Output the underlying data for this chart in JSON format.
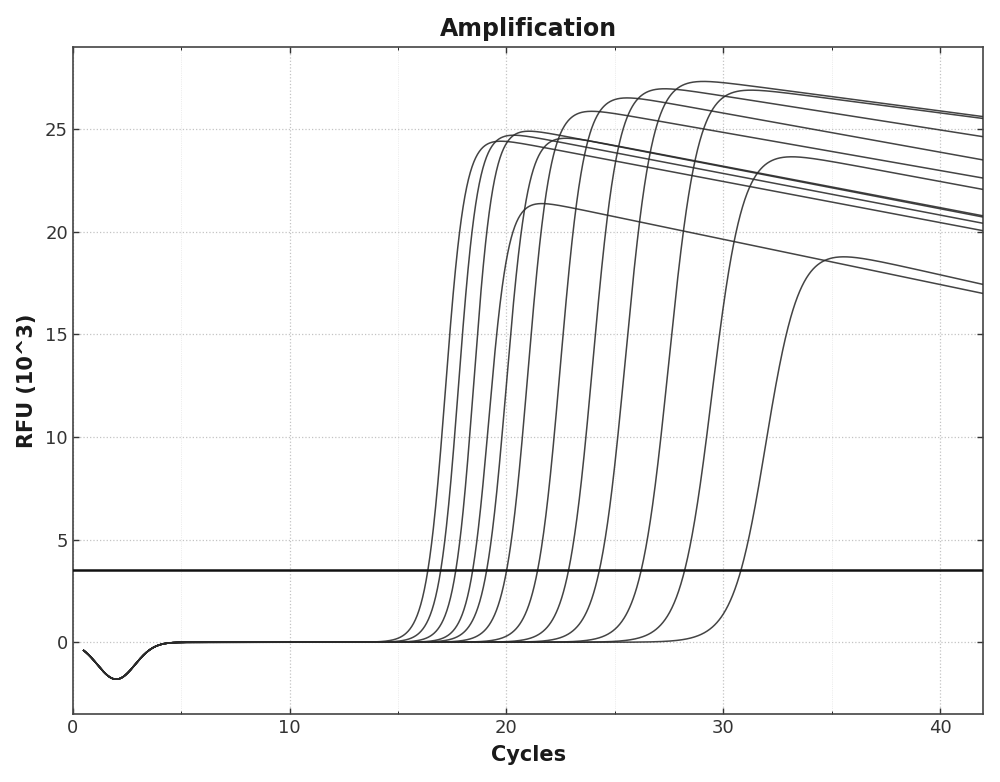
{
  "title": "Amplification",
  "xlabel": "Cycles",
  "ylabel": "RFU (10^3)",
  "xlim": [
    0,
    42
  ],
  "ylim": [
    -3.5,
    29
  ],
  "xticks": [
    0,
    10,
    20,
    30,
    40
  ],
  "yticks": [
    0,
    5,
    10,
    15,
    20,
    25
  ],
  "threshold_y": 3.5,
  "background_color": "#ffffff",
  "plot_bg_color": "#ffffff",
  "grid_color": "#aaaaaa",
  "curve_color": "#2a2a2a",
  "threshold_color": "#111111",
  "curves": [
    {
      "ct": 17.2,
      "plateau": 25.0,
      "slope": 2.2,
      "decay": 0.008
    },
    {
      "ct": 17.8,
      "plateau": 25.3,
      "slope": 2.2,
      "decay": 0.008
    },
    {
      "ct": 18.5,
      "plateau": 25.5,
      "slope": 2.2,
      "decay": 0.008
    },
    {
      "ct": 19.2,
      "plateau": 22.0,
      "slope": 2.2,
      "decay": 0.01
    },
    {
      "ct": 20.0,
      "plateau": 25.2,
      "slope": 2.0,
      "decay": 0.008
    },
    {
      "ct": 21.0,
      "plateau": 26.5,
      "slope": 1.9,
      "decay": 0.007
    },
    {
      "ct": 22.5,
      "plateau": 27.2,
      "slope": 1.8,
      "decay": 0.007
    },
    {
      "ct": 24.0,
      "plateau": 27.6,
      "slope": 1.7,
      "decay": 0.006
    },
    {
      "ct": 25.5,
      "plateau": 27.9,
      "slope": 1.6,
      "decay": 0.005
    },
    {
      "ct": 27.5,
      "plateau": 27.5,
      "slope": 1.5,
      "decay": 0.005
    },
    {
      "ct": 29.5,
      "plateau": 24.5,
      "slope": 1.4,
      "decay": 0.008
    },
    {
      "ct": 32.0,
      "plateau": 19.8,
      "slope": 1.3,
      "decay": 0.012
    }
  ],
  "title_fontsize": 17,
  "label_fontsize": 15,
  "tick_fontsize": 13,
  "figsize": [
    10.0,
    7.82
  ],
  "dpi": 100
}
